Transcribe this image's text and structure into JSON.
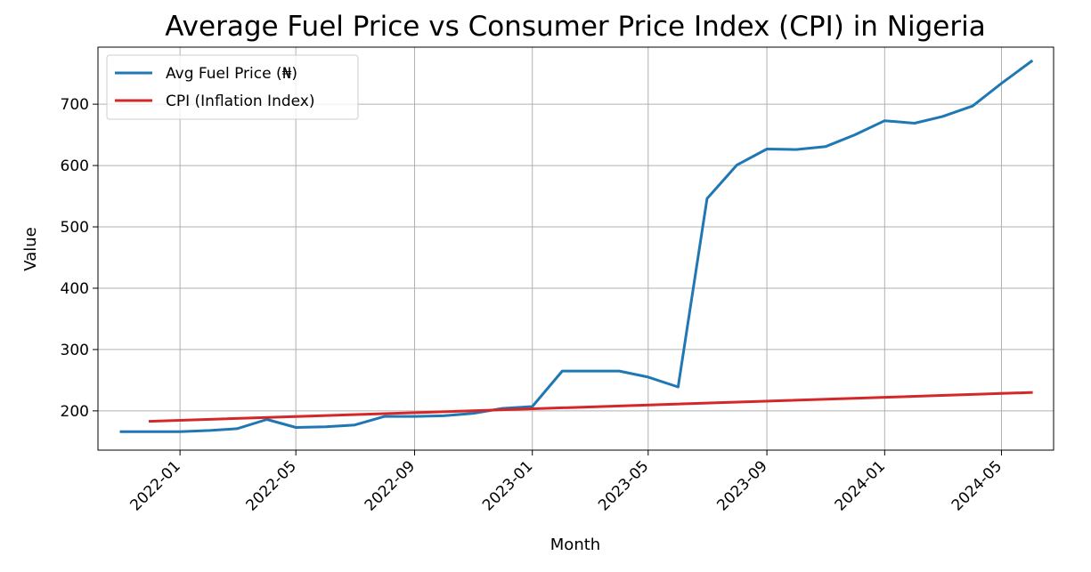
{
  "chart_data": {
    "type": "line",
    "title": "Average Fuel Price vs Consumer Price Index (CPI) in Nigeria",
    "xlabel": "Month",
    "ylabel": "Value",
    "xlim": [
      "2021-10-08",
      "2024-06-24"
    ],
    "ylim": [
      136,
      793
    ],
    "x_ticks": [
      "2022-01",
      "2022-05",
      "2022-09",
      "2023-01",
      "2023-05",
      "2023-09",
      "2024-01",
      "2024-05"
    ],
    "y_ticks": [
      200,
      300,
      400,
      500,
      600,
      700
    ],
    "grid": true,
    "legend": "top-left",
    "series": [
      {
        "name": "Avg Fuel Price (₦)",
        "color": "#1f77b4",
        "x": [
          "2021-11-01",
          "2021-12-01",
          "2022-01-01",
          "2022-02-01",
          "2022-03-01",
          "2022-04-01",
          "2022-05-01",
          "2022-06-01",
          "2022-07-01",
          "2022-08-01",
          "2022-09-01",
          "2022-10-01",
          "2022-11-01",
          "2022-12-01",
          "2023-01-01",
          "2023-02-01",
          "2023-03-01",
          "2023-04-01",
          "2023-05-01",
          "2023-06-01",
          "2023-07-01",
          "2023-08-01",
          "2023-09-01",
          "2023-10-01",
          "2023-11-01",
          "2023-12-01",
          "2024-01-01",
          "2024-02-01",
          "2024-03-01",
          "2024-04-01",
          "2024-05-01",
          "2024-06-01"
        ],
        "values": [
          166,
          166,
          166,
          168,
          171,
          186,
          173,
          174,
          177,
          191,
          191,
          192,
          196,
          204,
          207,
          265,
          265,
          265,
          255,
          239,
          546,
          601,
          627,
          626,
          631,
          650,
          673,
          669,
          680,
          697,
          734,
          770
        ]
      },
      {
        "name": "CPI (Inflation Index)",
        "color": "#d62728",
        "x": [
          "2021-12-01",
          "2024-06-01"
        ],
        "values": [
          183,
          230
        ]
      }
    ]
  }
}
